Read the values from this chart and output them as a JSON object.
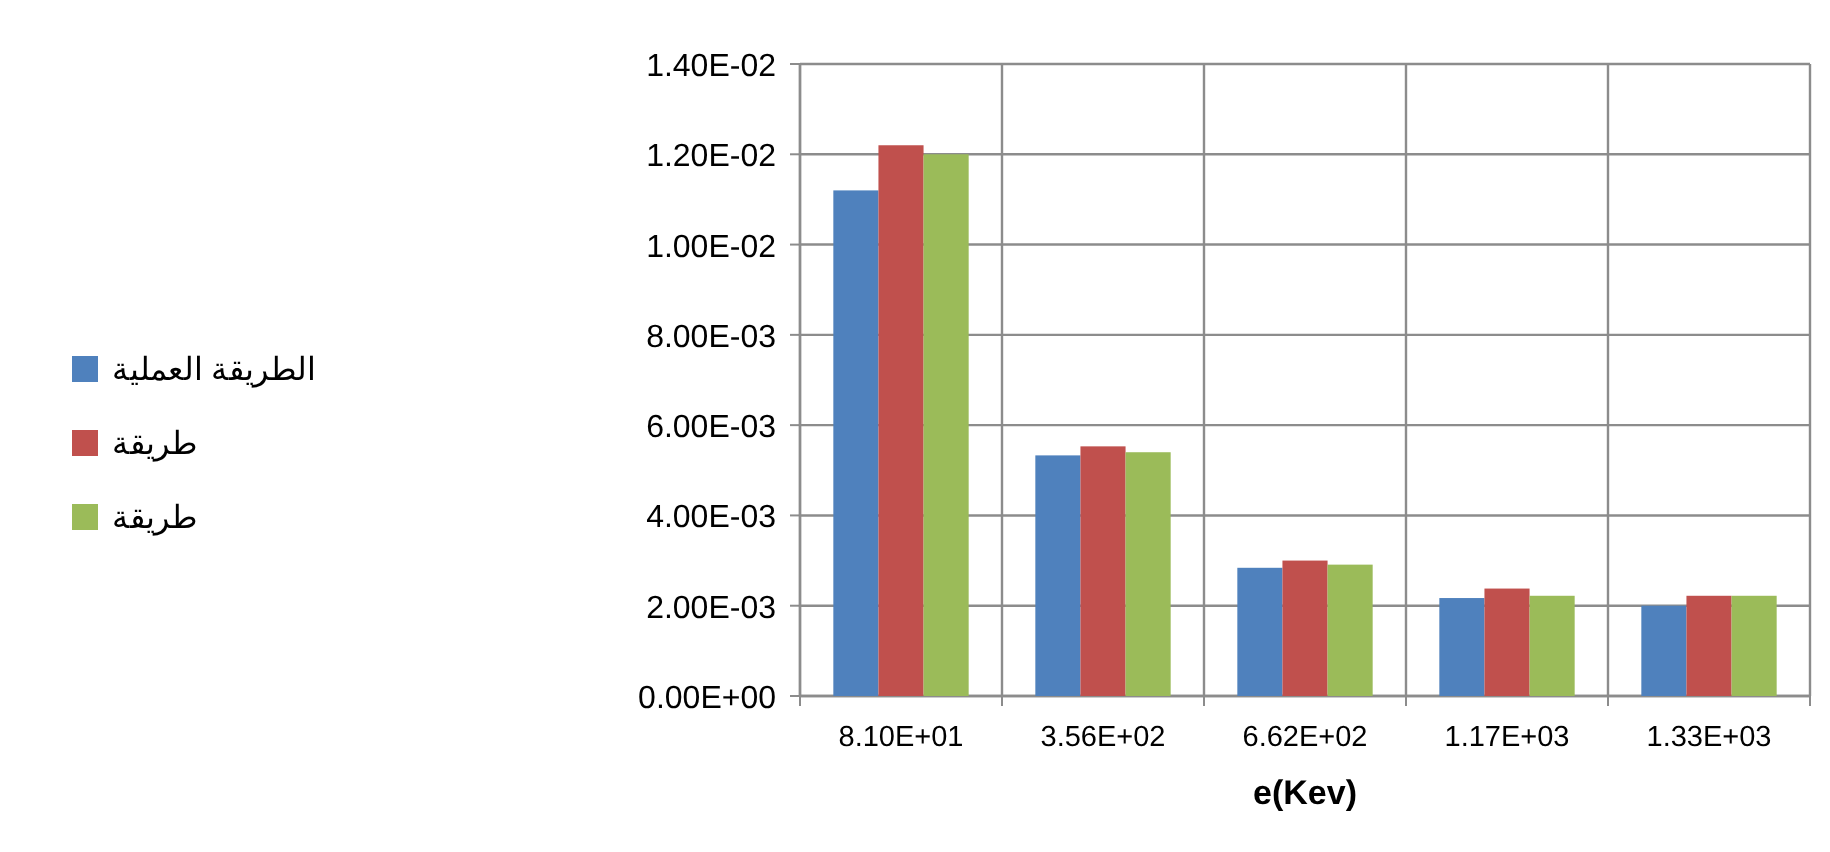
{
  "chart_data": {
    "type": "bar",
    "xlabel": "e(Kev)",
    "categories": [
      "8.10E+01",
      "3.56E+02",
      "6.62E+02",
      "1.17E+03",
      "1.33E+03"
    ],
    "series": [
      {
        "name": "الطريقة العملية",
        "color": "#4f81bd",
        "values": [
          0.0112,
          0.00533,
          0.00284,
          0.00217,
          0.002
        ]
      },
      {
        "name": "طريقة",
        "color": "#c0504d",
        "values": [
          0.0122,
          0.00553,
          0.003,
          0.00238,
          0.00222
        ]
      },
      {
        "name": "طريقة",
        "color": "#9bbb59",
        "values": [
          0.012,
          0.0054,
          0.00291,
          0.00222,
          0.00222
        ]
      }
    ],
    "ylim": [
      0,
      0.014
    ],
    "yticks": [
      {
        "value": 0,
        "label": "0.00E+00"
      },
      {
        "value": 0.002,
        "label": "2.00E-03"
      },
      {
        "value": 0.004,
        "label": "4.00E-03"
      },
      {
        "value": 0.006,
        "label": "6.00E-03"
      },
      {
        "value": 0.008,
        "label": "8.00E-03"
      },
      {
        "value": 0.01,
        "label": "1.00E-02"
      },
      {
        "value": 0.012,
        "label": "1.20E-02"
      },
      {
        "value": 0.014,
        "label": "1.40E-02"
      }
    ],
    "grid": true,
    "legend": "left"
  }
}
